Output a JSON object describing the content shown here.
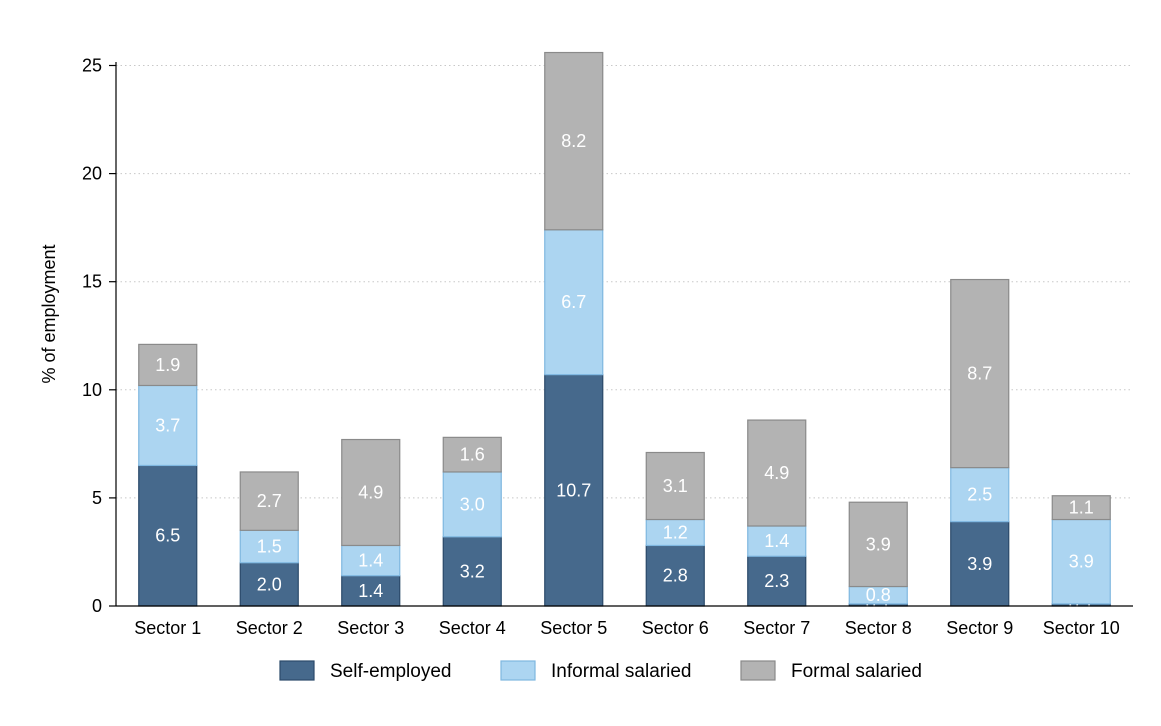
{
  "chart_data": {
    "type": "bar",
    "stacked": true,
    "categories": [
      "Sector 1",
      "Sector 2",
      "Sector 3",
      "Sector 4",
      "Sector 5",
      "Sector 6",
      "Sector 7",
      "Sector 8",
      "Sector 9",
      "Sector 10"
    ],
    "series": [
      {
        "name": "Self-employed",
        "color": "#46698c",
        "stroke": "#2b4a6a",
        "values": [
          6.5,
          2.0,
          1.4,
          3.2,
          10.7,
          2.8,
          2.3,
          0.1,
          3.9,
          0.1
        ]
      },
      {
        "name": "Informal salaried",
        "color": "#acd5f1",
        "stroke": "#7fb7e0",
        "values": [
          3.7,
          1.5,
          1.4,
          3.0,
          6.7,
          1.2,
          1.4,
          0.8,
          2.5,
          3.9
        ]
      },
      {
        "name": "Formal salaried",
        "color": "#b3b3b3",
        "stroke": "#8a8a8a",
        "values": [
          1.9,
          2.7,
          4.9,
          1.6,
          8.2,
          3.1,
          4.9,
          3.9,
          8.7,
          1.1
        ]
      }
    ],
    "labels": [
      [
        "6.5",
        "2.0",
        "1.4",
        "3.2",
        "10.7",
        "2.8",
        "2.3",
        "0.1",
        "3.9",
        "0.1"
      ],
      [
        "3.7",
        "1.5",
        "1.4",
        "3.0",
        "6.7",
        "1.2",
        "1.4",
        "0.8",
        "2.5",
        "3.9"
      ],
      [
        "1.9",
        "2.7",
        "4.9",
        "1.6",
        "8.2",
        "3.1",
        "4.9",
        "3.9",
        "8.7",
        "1.1"
      ]
    ],
    "title": "",
    "xlabel": "",
    "ylabel": "% of employment",
    "ylim": [
      0,
      25
    ],
    "yticks": [
      0,
      5,
      10,
      15,
      20,
      25
    ],
    "ytick_labels": [
      "0",
      "5",
      "10",
      "15",
      "20",
      "25"
    ],
    "grid": "horizontal dotted",
    "legend_position": "bottom"
  }
}
